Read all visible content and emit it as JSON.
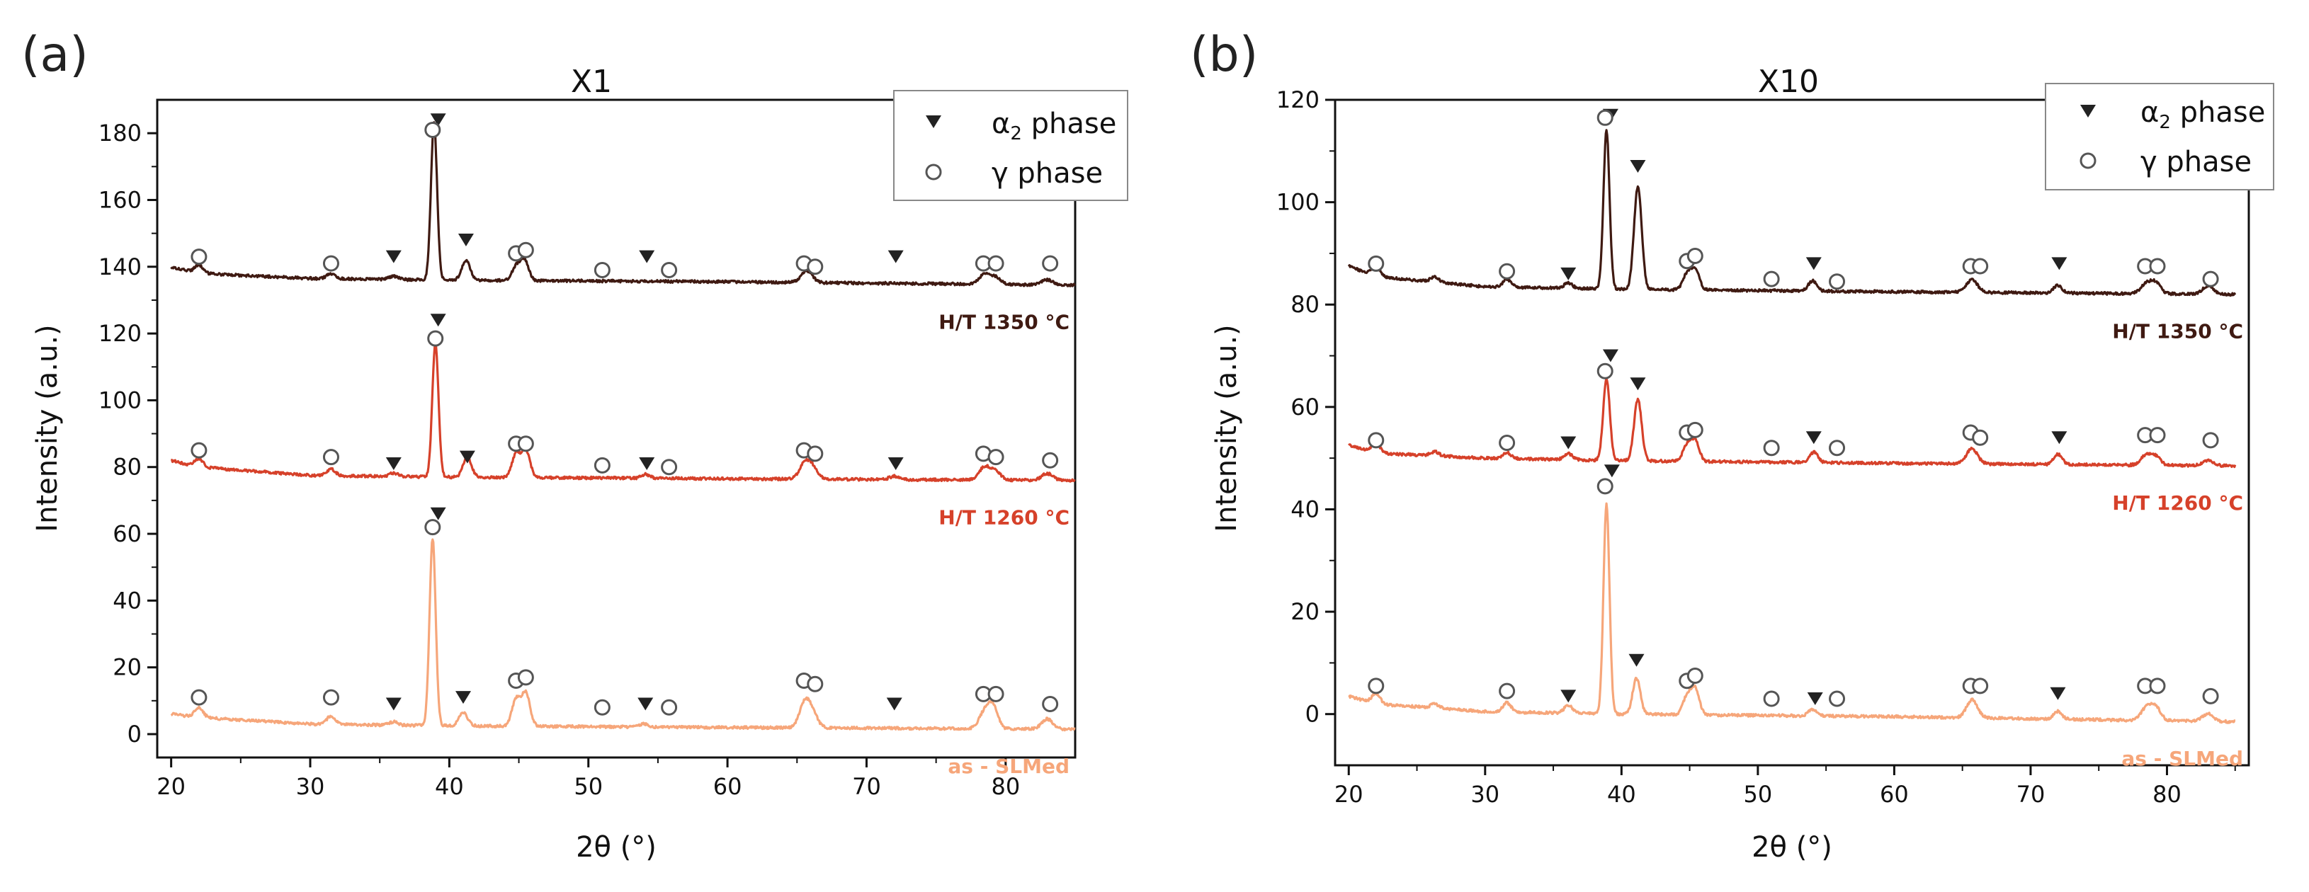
{
  "colors": {
    "ht1350": "#3f1a12",
    "ht1260": "#d6412a",
    "asSLM": "#f6a67a",
    "axis": "#111111",
    "marker": "#222222"
  },
  "legend": {
    "alpha_symbol": "α",
    "alpha_sub": "2",
    "alpha_text": " phase",
    "gamma_label": "γ phase"
  },
  "chart_data": [
    {
      "panel": "(a)",
      "title": "X1",
      "type": "line",
      "xlabel": "2θ (°)",
      "ylabel": "Intensity (a.u.)",
      "xlim": [
        19,
        85
      ],
      "ylim": [
        -7,
        190
      ],
      "xticks": [
        20,
        30,
        40,
        50,
        60,
        70,
        80
      ],
      "yticks": [
        0,
        20,
        40,
        60,
        80,
        100,
        120,
        140,
        160,
        180
      ],
      "legend_position": "top-right",
      "series": [
        {
          "name": "H/T 1350 °C",
          "color_key": "ht1350",
          "baseline": [
            [
              20,
              140
            ],
            [
              22,
              138
            ],
            [
              30,
              136.5
            ],
            [
              40,
              136
            ],
            [
              60,
              135.5
            ],
            [
              85,
              134.5
            ]
          ],
          "peaks": [
            [
              22,
              2.5,
              0.3
            ],
            [
              31.5,
              1.5,
              0.3
            ],
            [
              36,
              1,
              0.3
            ],
            [
              38.9,
              47,
              0.22
            ],
            [
              41.2,
              6,
              0.3
            ],
            [
              44.8,
              4,
              0.3
            ],
            [
              45.4,
              6,
              0.3
            ],
            [
              65.7,
              3.5,
              0.4
            ],
            [
              78.5,
              3,
              0.4
            ],
            [
              79.3,
              2,
              0.35
            ],
            [
              83,
              1.5,
              0.4
            ]
          ],
          "label": "H/T 1350 °C",
          "alpha_markers": [
            [
              36,
              143
            ],
            [
              39.2,
              184
            ],
            [
              41.2,
              148
            ],
            [
              54.2,
              143
            ],
            [
              72.1,
              143
            ]
          ],
          "gamma_markers": [
            [
              22,
              143
            ],
            [
              31.5,
              141
            ],
            [
              38.8,
              181
            ],
            [
              44.8,
              144
            ],
            [
              45.5,
              145
            ],
            [
              51,
              139
            ],
            [
              55.8,
              139
            ],
            [
              65.5,
              141
            ],
            [
              66.3,
              140
            ],
            [
              78.4,
              141
            ],
            [
              79.3,
              141
            ],
            [
              83.2,
              141
            ]
          ]
        },
        {
          "name": "H/T 1260 °C",
          "color_key": "ht1260",
          "baseline": [
            [
              20,
              82
            ],
            [
              22,
              80
            ],
            [
              30,
              77.5
            ],
            [
              40,
              77
            ],
            [
              60,
              76.5
            ],
            [
              85,
              76
            ]
          ],
          "peaks": [
            [
              22,
              2.5,
              0.3
            ],
            [
              31.5,
              2,
              0.3
            ],
            [
              36,
              1,
              0.3
            ],
            [
              39.0,
              40,
              0.22
            ],
            [
              41.3,
              6,
              0.3
            ],
            [
              44.8,
              7,
              0.3
            ],
            [
              45.5,
              8,
              0.3
            ],
            [
              54.1,
              1.2,
              0.3
            ],
            [
              65.6,
              5,
              0.4
            ],
            [
              66.2,
              2.5,
              0.35
            ],
            [
              72,
              1,
              0.35
            ],
            [
              78.5,
              4,
              0.4
            ],
            [
              79.3,
              2.5,
              0.35
            ],
            [
              83,
              2,
              0.4
            ]
          ],
          "label": "H/T 1260 °C",
          "alpha_markers": [
            [
              36,
              81
            ],
            [
              39.2,
              124
            ],
            [
              41.3,
              83
            ],
            [
              54.2,
              81
            ],
            [
              72.1,
              81
            ]
          ],
          "gamma_markers": [
            [
              22,
              85
            ],
            [
              31.5,
              83
            ],
            [
              39,
              118.5
            ],
            [
              44.8,
              87
            ],
            [
              45.5,
              87
            ],
            [
              51,
              80.5
            ],
            [
              55.8,
              80
            ],
            [
              65.5,
              85
            ],
            [
              66.3,
              84
            ],
            [
              78.4,
              84
            ],
            [
              79.3,
              83
            ],
            [
              83.2,
              82
            ]
          ]
        },
        {
          "name": "as - SLMed",
          "color_key": "asSLM",
          "baseline": [
            [
              20,
              6
            ],
            [
              22,
              5
            ],
            [
              30,
              3
            ],
            [
              40,
              2.5
            ],
            [
              60,
              2
            ],
            [
              85,
              1.5
            ]
          ],
          "peaks": [
            [
              22,
              3,
              0.3
            ],
            [
              31.5,
              2.5,
              0.3
            ],
            [
              36,
              1,
              0.3
            ],
            [
              38.8,
              56,
              0.22
            ],
            [
              41,
              4,
              0.3
            ],
            [
              44.8,
              8,
              0.3
            ],
            [
              45.5,
              10,
              0.3
            ],
            [
              54,
              1,
              0.3
            ],
            [
              65.6,
              8,
              0.4
            ],
            [
              66.2,
              3,
              0.35
            ],
            [
              78.5,
              5,
              0.4
            ],
            [
              79.1,
              6,
              0.35
            ],
            [
              83,
              3,
              0.4
            ]
          ],
          "label": "as - SLMed",
          "alpha_markers": [
            [
              36,
              9
            ],
            [
              39.2,
              66
            ],
            [
              41.0,
              11
            ],
            [
              54.1,
              9
            ],
            [
              72.0,
              9
            ]
          ],
          "gamma_markers": [
            [
              22,
              11
            ],
            [
              31.5,
              11
            ],
            [
              38.8,
              62
            ],
            [
              44.8,
              16
            ],
            [
              45.5,
              17
            ],
            [
              51,
              8
            ],
            [
              55.8,
              8
            ],
            [
              65.5,
              16
            ],
            [
              66.3,
              15
            ],
            [
              78.4,
              12
            ],
            [
              79.3,
              12
            ],
            [
              83.2,
              9
            ]
          ]
        }
      ]
    },
    {
      "panel": "(b)",
      "title": "X10",
      "type": "line",
      "xlabel": "2θ (°)",
      "ylabel": "Intensity (a.u.)",
      "xlim": [
        19,
        86
      ],
      "ylim": [
        -10,
        120
      ],
      "xticks": [
        20,
        30,
        40,
        50,
        60,
        70,
        80
      ],
      "yticks": [
        0,
        20,
        40,
        60,
        80,
        100,
        120
      ],
      "legend_position": "top-right",
      "series": [
        {
          "name": "H/T 1350 °C",
          "color_key": "ht1350",
          "baseline": [
            [
              20,
              87.5
            ],
            [
              22,
              85.5
            ],
            [
              30,
              83.5
            ],
            [
              40,
              83
            ],
            [
              60,
              82.5
            ],
            [
              85,
              82
            ]
          ],
          "peaks": [
            [
              22,
              2,
              0.3
            ],
            [
              26.3,
              1,
              0.3
            ],
            [
              31.6,
              1.5,
              0.3
            ],
            [
              36.1,
              1,
              0.3
            ],
            [
              38.9,
              31,
              0.22
            ],
            [
              41.2,
              20,
              0.28
            ],
            [
              44.8,
              3,
              0.3
            ],
            [
              45.4,
              4,
              0.3
            ],
            [
              54,
              2,
              0.3
            ],
            [
              65.7,
              2.5,
              0.4
            ],
            [
              72,
              1.5,
              0.3
            ],
            [
              78.5,
              2,
              0.4
            ],
            [
              79.2,
              2,
              0.35
            ],
            [
              83,
              1.5,
              0.4
            ]
          ],
          "label": "H/T 1350 °C",
          "alpha_markers": [
            [
              36.1,
              86
            ],
            [
              39.2,
              117
            ],
            [
              41.2,
              107
            ],
            [
              54.1,
              88
            ],
            [
              72.1,
              88
            ]
          ],
          "gamma_markers": [
            [
              22,
              88
            ],
            [
              31.6,
              86.5
            ],
            [
              38.8,
              116.5
            ],
            [
              44.8,
              88.5
            ],
            [
              45.4,
              89.5
            ],
            [
              51,
              85
            ],
            [
              55.8,
              84.5
            ],
            [
              65.6,
              87.5
            ],
            [
              66.3,
              87.5
            ],
            [
              78.4,
              87.5
            ],
            [
              79.3,
              87.5
            ],
            [
              83.2,
              85
            ]
          ]
        },
        {
          "name": "H/T 1260 °C",
          "color_key": "ht1260",
          "baseline": [
            [
              20,
              52.5
            ],
            [
              22,
              51
            ],
            [
              30,
              50
            ],
            [
              40,
              49.5
            ],
            [
              60,
              49
            ],
            [
              85,
              48.5
            ]
          ],
          "peaks": [
            [
              22,
              2,
              0.3
            ],
            [
              26.3,
              0.8,
              0.3
            ],
            [
              31.6,
              1.2,
              0.3
            ],
            [
              36.1,
              1.2,
              0.3
            ],
            [
              38.9,
              16,
              0.24
            ],
            [
              41.2,
              12,
              0.28
            ],
            [
              44.8,
              3,
              0.3
            ],
            [
              45.4,
              4,
              0.3
            ],
            [
              54.1,
              2,
              0.3
            ],
            [
              65.7,
              3,
              0.4
            ],
            [
              72,
              2,
              0.3
            ],
            [
              78.5,
              2,
              0.4
            ],
            [
              79.2,
              1.5,
              0.35
            ],
            [
              83,
              1,
              0.4
            ]
          ],
          "label": "H/T 1260 °C",
          "alpha_markers": [
            [
              36.1,
              53
            ],
            [
              39.2,
              70
            ],
            [
              41.2,
              64.5
            ],
            [
              54.1,
              54
            ],
            [
              72.1,
              54
            ]
          ],
          "gamma_markers": [
            [
              22,
              53.5
            ],
            [
              31.6,
              53
            ],
            [
              38.8,
              67
            ],
            [
              44.8,
              55
            ],
            [
              45.4,
              55.5
            ],
            [
              51,
              52
            ],
            [
              55.8,
              52
            ],
            [
              65.6,
              55
            ],
            [
              66.3,
              54
            ],
            [
              78.4,
              54.5
            ],
            [
              79.3,
              54.5
            ],
            [
              83.2,
              53.5
            ]
          ]
        },
        {
          "name": "as - SLMed",
          "color_key": "asSLM",
          "baseline": [
            [
              20,
              3.5
            ],
            [
              22,
              2
            ],
            [
              30,
              0.5
            ],
            [
              40,
              0
            ],
            [
              60,
              -0.5
            ],
            [
              85,
              -1.5
            ]
          ],
          "peaks": [
            [
              22,
              2,
              0.3
            ],
            [
              26.3,
              0.8,
              0.3
            ],
            [
              31.6,
              1.8,
              0.3
            ],
            [
              36.1,
              1.5,
              0.3
            ],
            [
              38.9,
              41,
              0.22
            ],
            [
              41.1,
              7,
              0.28
            ],
            [
              44.8,
              3.5,
              0.3
            ],
            [
              45.4,
              5,
              0.3
            ],
            [
              54,
              1.2,
              0.3
            ],
            [
              65.7,
              3.5,
              0.4
            ],
            [
              72,
              1.5,
              0.3
            ],
            [
              78.5,
              2.5,
              0.4
            ],
            [
              79.2,
              2.5,
              0.35
            ],
            [
              83,
              1.5,
              0.4
            ]
          ],
          "label": "as - SLMed",
          "alpha_markers": [
            [
              36.1,
              3.5
            ],
            [
              39.3,
              47.5
            ],
            [
              41.1,
              10.5
            ],
            [
              54.2,
              3
            ],
            [
              72.0,
              4
            ]
          ],
          "gamma_markers": [
            [
              22,
              5.5
            ],
            [
              31.6,
              4.5
            ],
            [
              38.8,
              44.5
            ],
            [
              44.8,
              6.5
            ],
            [
              45.4,
              7.5
            ],
            [
              51,
              3
            ],
            [
              55.8,
              3
            ],
            [
              65.6,
              5.5
            ],
            [
              66.3,
              5.5
            ],
            [
              78.4,
              5.5
            ],
            [
              79.3,
              5.5
            ],
            [
              83.2,
              3.5
            ]
          ]
        }
      ]
    }
  ]
}
